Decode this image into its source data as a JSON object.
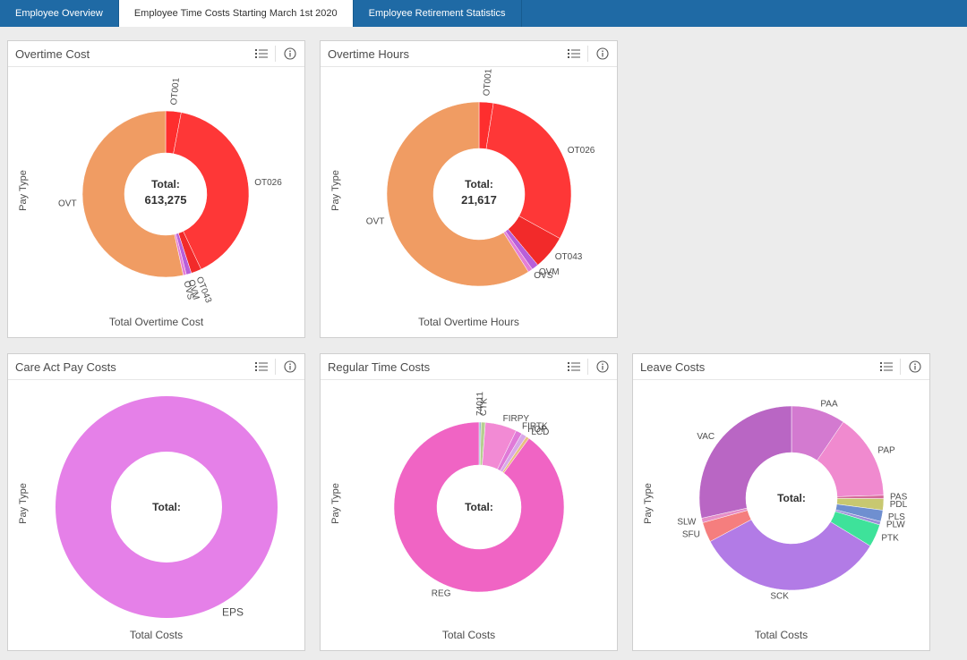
{
  "tabs": [
    {
      "label": "Employee Overview",
      "active": false
    },
    {
      "label": "Employee Time Costs Starting March 1st 2020",
      "active": true
    },
    {
      "label": "Employee Retirement Statistics",
      "active": false
    }
  ],
  "icons": {
    "list": "list-icon",
    "info": "info-icon"
  },
  "colors": {
    "tabbar": "#1f6aa5",
    "panel_bg": "#ffffff",
    "page_bg": "#ececec"
  },
  "chart_data": [
    {
      "id": "overtime_cost",
      "type": "pie",
      "donut": true,
      "title": "Overtime Cost",
      "xlabel": "Total Overtime Cost",
      "ylabel": "Pay Type",
      "total_label": "Total:",
      "total_value": "613,275",
      "slices": [
        {
          "label": "OT001",
          "value": 0.03,
          "color": "#fe2e2e"
        },
        {
          "label": "OT026",
          "value": 0.4,
          "color": "#fe3737"
        },
        {
          "label": "OT043",
          "value": 0.02,
          "color": "#f22a2a"
        },
        {
          "label": "OVM",
          "value": 0.01,
          "color": "#b85fda"
        },
        {
          "label": "OVS",
          "value": 0.006,
          "color": "#e57fd6"
        },
        {
          "label": "OVT",
          "value": 0.534,
          "color": "#f09c63"
        }
      ]
    },
    {
      "id": "overtime_hours",
      "type": "pie",
      "donut": true,
      "title": "Overtime Hours",
      "xlabel": "Total Overtime Hours",
      "ylabel": "Pay Type",
      "total_label": "Total:",
      "total_value": "21,617",
      "slices": [
        {
          "label": "OT001",
          "value": 0.025,
          "color": "#fe2e2e"
        },
        {
          "label": "OT026",
          "value": 0.305,
          "color": "#fe3737"
        },
        {
          "label": "OT043",
          "value": 0.06,
          "color": "#f22a2a"
        },
        {
          "label": "OVM",
          "value": 0.012,
          "color": "#b85fda"
        },
        {
          "label": "OVS",
          "value": 0.008,
          "color": "#e57fd6"
        },
        {
          "label": "OVT",
          "value": 0.59,
          "color": "#f09c63"
        }
      ]
    },
    {
      "id": "care_act",
      "type": "pie",
      "donut": true,
      "title": "Care Act Pay Costs",
      "xlabel": "Total Costs",
      "ylabel": "Pay Type",
      "total_label": "Total:",
      "total_value": "",
      "slices": [
        {
          "label": "EPS",
          "value": 1.0,
          "color": "#e580e8"
        }
      ]
    },
    {
      "id": "regular_time",
      "type": "pie",
      "donut": true,
      "title": "Regular Time Costs",
      "xlabel": "Total Costs",
      "ylabel": "Pay Type",
      "total_label": "Total:",
      "total_value": "",
      "slices": [
        {
          "label": "74011",
          "value": 0.004,
          "color": "#9fb8d6"
        },
        {
          "label": "CTK",
          "value": 0.008,
          "color": "#b6cf90"
        },
        {
          "label": "FIRPY",
          "value": 0.06,
          "color": "#f28ad4"
        },
        {
          "label": "FIRTK",
          "value": 0.012,
          "color": "#e07ad8"
        },
        {
          "label": "HOP",
          "value": 0.01,
          "color": "#d9a8e8"
        },
        {
          "label": "LCD",
          "value": 0.006,
          "color": "#e8c080"
        },
        {
          "label": "REG",
          "value": 0.9,
          "color": "#f064c4"
        }
      ]
    },
    {
      "id": "leave_costs",
      "type": "pie",
      "donut": true,
      "title": "Leave Costs",
      "xlabel": "Total Costs",
      "ylabel": "Pay Type",
      "total_label": "Total:",
      "total_value": "",
      "slices": [
        {
          "label": "PAA",
          "value": 0.095,
          "color": "#d37ad0"
        },
        {
          "label": "PAP",
          "value": 0.15,
          "color": "#f08acf"
        },
        {
          "label": "PAS",
          "value": 0.006,
          "color": "#d66a9a"
        },
        {
          "label": "PDL",
          "value": 0.02,
          "color": "#c8c870"
        },
        {
          "label": "PLS",
          "value": 0.02,
          "color": "#6f8fd0"
        },
        {
          "label": "PLW",
          "value": 0.006,
          "color": "#9b8fd8"
        },
        {
          "label": "PTK",
          "value": 0.04,
          "color": "#3ee29a"
        },
        {
          "label": "SCK",
          "value": 0.335,
          "color": "#b27be6"
        },
        {
          "label": "SFU",
          "value": 0.035,
          "color": "#f57e7e"
        },
        {
          "label": "SLW",
          "value": 0.008,
          "color": "#e68fc8"
        },
        {
          "label": "VAC",
          "value": 0.285,
          "color": "#b966c4"
        }
      ]
    }
  ]
}
